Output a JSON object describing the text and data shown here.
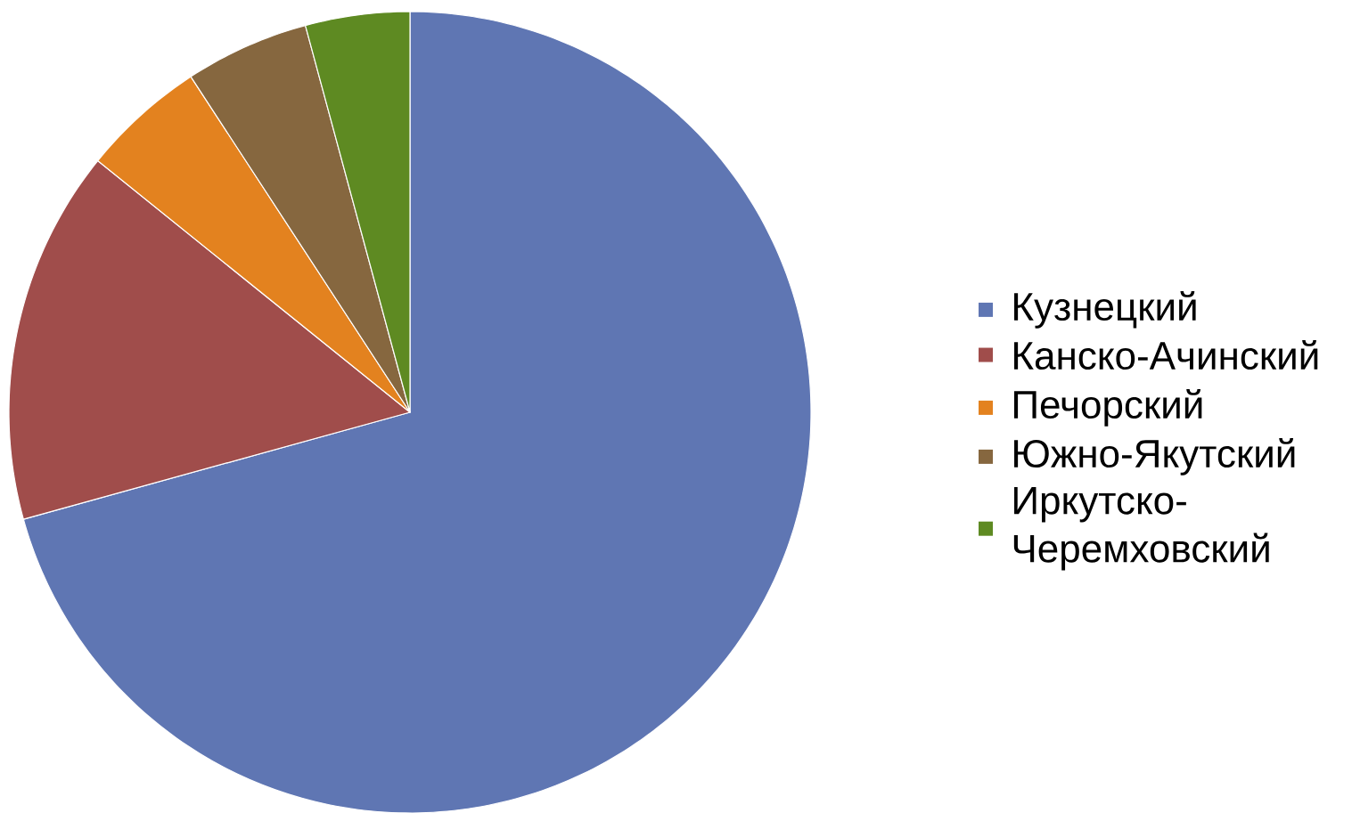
{
  "chart_data": {
    "type": "pie",
    "categories": [
      "Кузнецкий",
      "Канско-Ачинский",
      "Печорский",
      "Южно-Якутский",
      "Иркутско-Черемховский"
    ],
    "values": [
      70.7,
      15.1,
      5.0,
      5.0,
      4.2
    ],
    "colors": [
      "#5f76b3",
      "#a04d4b",
      "#e3821f",
      "#86673f",
      "#5e8a22"
    ],
    "legend": "right"
  }
}
